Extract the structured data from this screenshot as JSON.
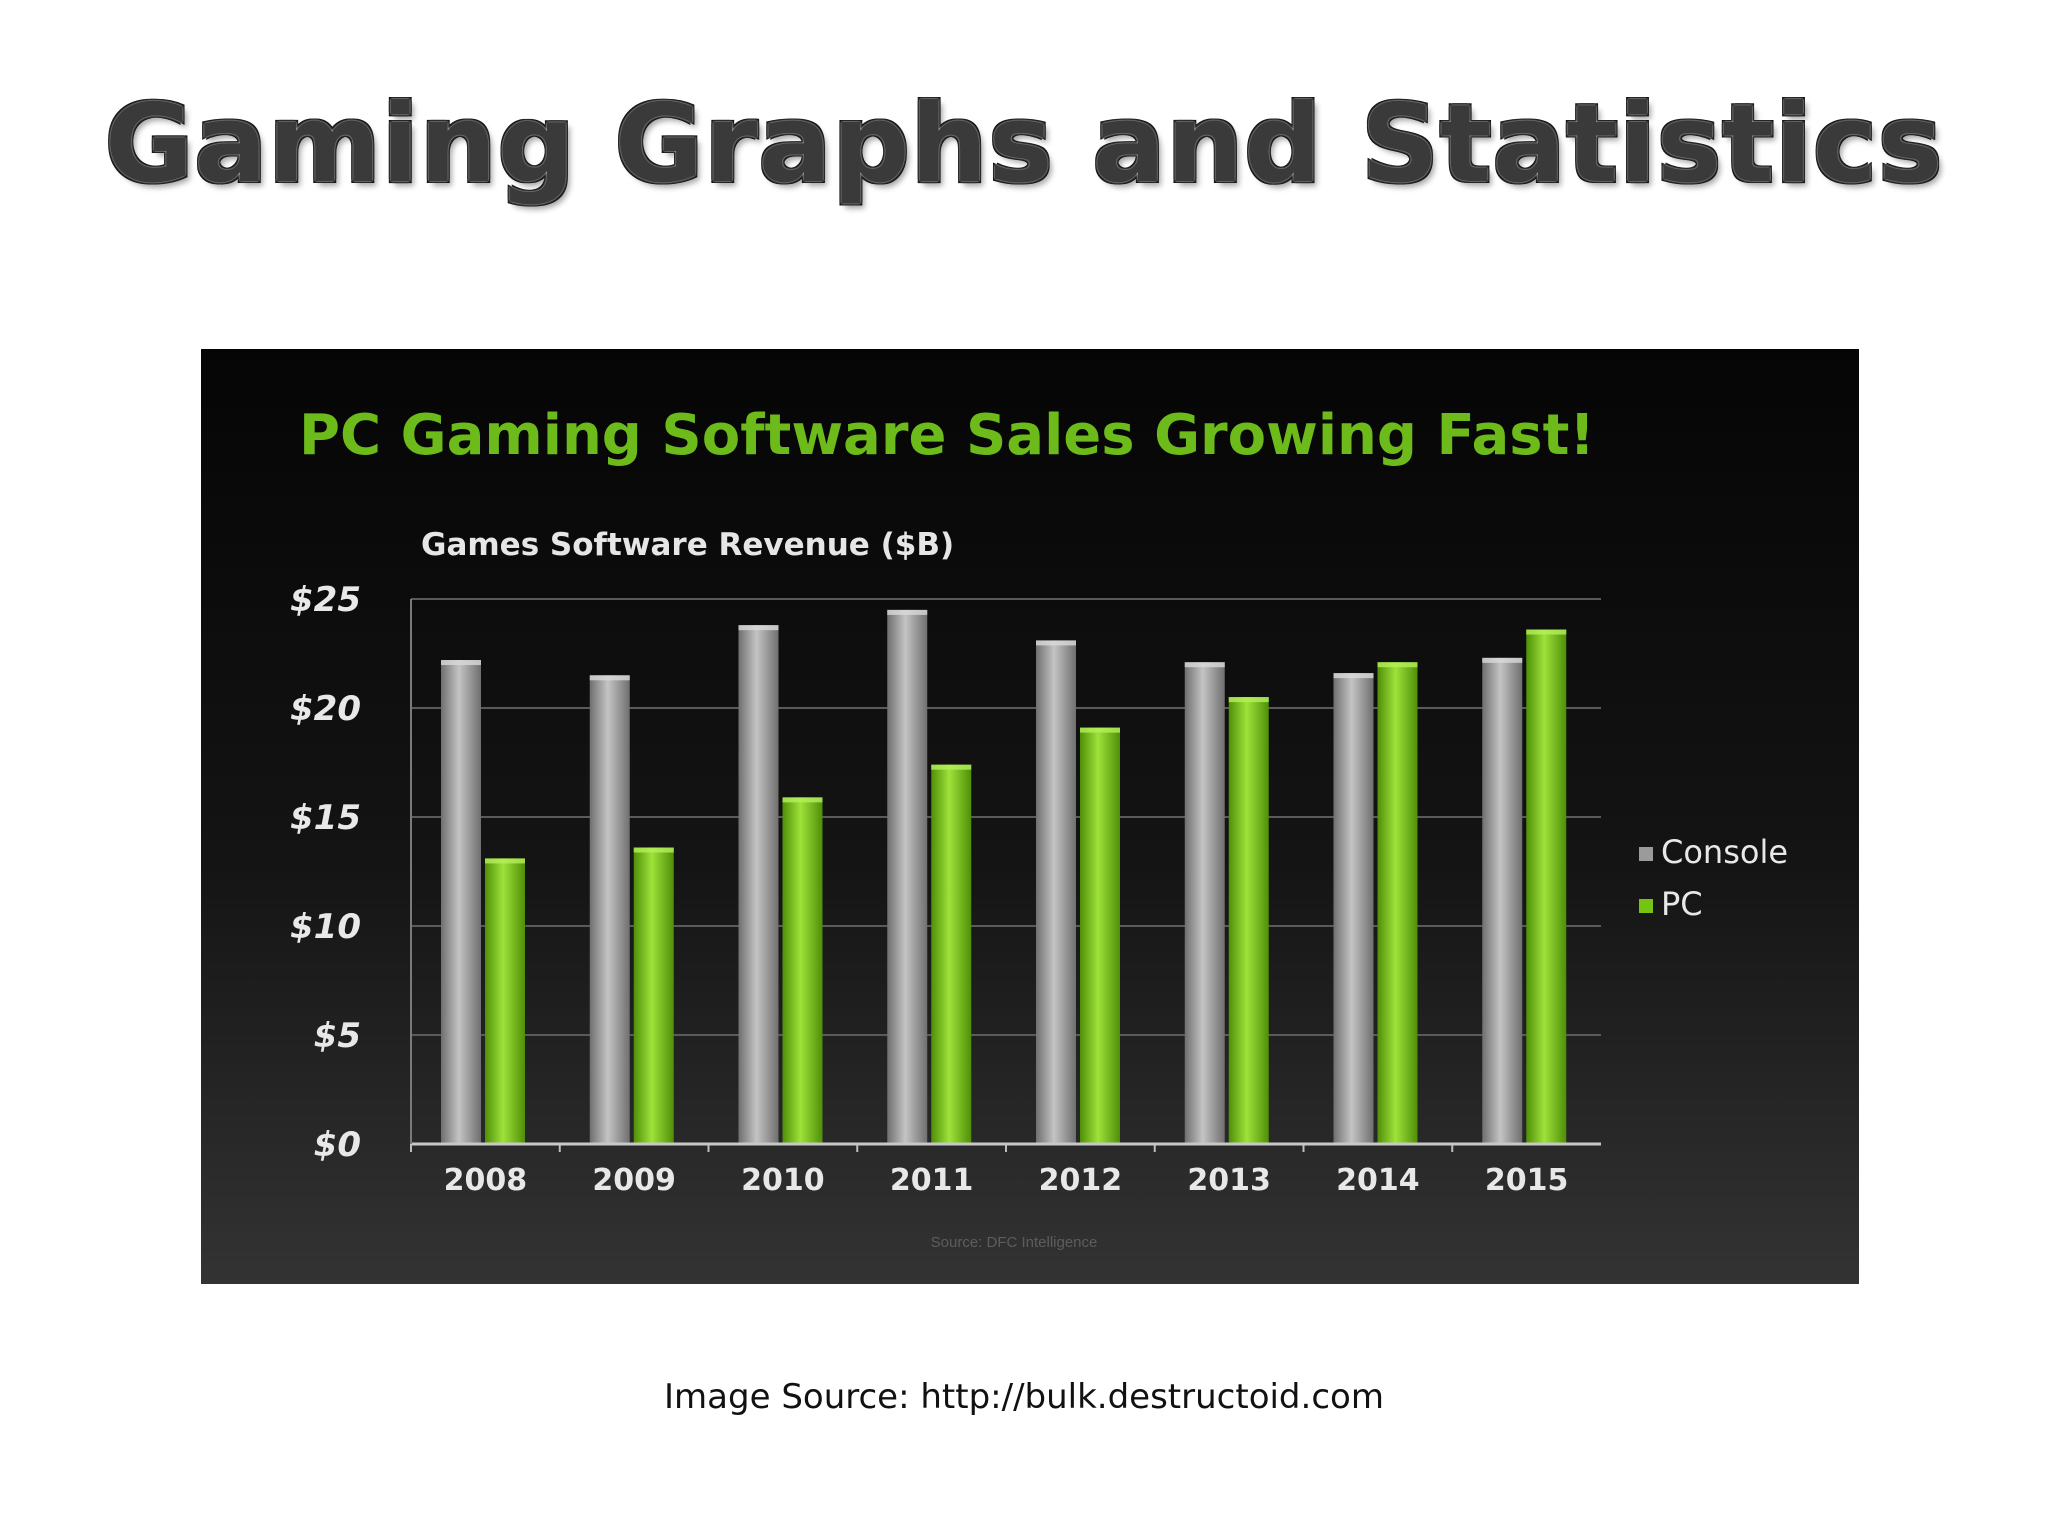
{
  "slide": {
    "title": "Gaming Graphs and Statistics",
    "caption": "Image Source: http://bulk.destructoid.com"
  },
  "chart_data": {
    "type": "bar",
    "title": "PC Gaming Software Sales Growing Fast!",
    "subtitle": "Games Software Revenue ($B)",
    "source_note": "Source: DFC Intelligence",
    "categories": [
      "2008",
      "2009",
      "2010",
      "2011",
      "2012",
      "2013",
      "2014",
      "2015"
    ],
    "series": [
      {
        "name": "Console",
        "color": "#9b9b9b",
        "values": [
          22.2,
          21.5,
          23.8,
          24.5,
          23.1,
          22.1,
          21.6,
          22.3
        ]
      },
      {
        "name": "PC",
        "color": "#76c412",
        "values": [
          13.1,
          13.6,
          15.9,
          17.4,
          19.1,
          20.5,
          22.1,
          23.6
        ]
      }
    ],
    "y_ticks": [
      {
        "value": 0,
        "label": "$0"
      },
      {
        "value": 5,
        "label": "$5"
      },
      {
        "value": 10,
        "label": "$10"
      },
      {
        "value": 15,
        "label": "$15"
      },
      {
        "value": 20,
        "label": "$20"
      },
      {
        "value": 25,
        "label": "$25"
      }
    ],
    "ylim": [
      0,
      25
    ],
    "grid": true,
    "legend_position": "right",
    "title_color": "#6dbb1a"
  }
}
